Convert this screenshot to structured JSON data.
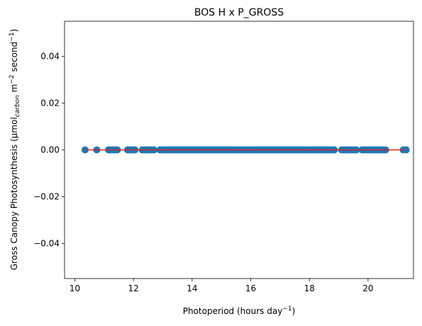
{
  "chart_data": {
    "type": "scatter",
    "title": "BOS H x P_GROSS",
    "xlabel": "Photoperiod (hours day",
    "xlabel_sup": "−1",
    "xlabel_end": ")",
    "ylabel_pre": "Gross Canopy Photosynthesis (μmol",
    "ylabel_sub": "carbon",
    "ylabel_mid": " m",
    "ylabel_sup1": "−2",
    "ylabel_mid2": " second",
    "ylabel_sup2": "−1",
    "ylabel_end": ")",
    "xlim": [
      9.65,
      21.55
    ],
    "ylim": [
      -0.055,
      0.055
    ],
    "x_ticks": [
      10,
      12,
      14,
      16,
      18,
      20
    ],
    "y_ticks": [
      -0.04,
      -0.02,
      0.0,
      0.02,
      0.04
    ],
    "y_tick_labels": [
      "−0.04",
      "−0.02",
      "0.00",
      "0.02",
      "0.04"
    ],
    "grid": false,
    "point_color": "#1f77b4",
    "line_color": "#d62728",
    "line": {
      "x": [
        10.35,
        21.25
      ],
      "y": [
        0,
        0
      ]
    },
    "points_x_ranges": [
      [
        10.35,
        10.35
      ],
      [
        10.75,
        10.75
      ],
      [
        11.15,
        11.45
      ],
      [
        11.8,
        12.05
      ],
      [
        12.3,
        12.7
      ],
      [
        12.9,
        18.85
      ],
      [
        19.1,
        19.6
      ],
      [
        19.8,
        20.6
      ],
      [
        21.2,
        21.3
      ]
    ],
    "points_y": 0
  }
}
